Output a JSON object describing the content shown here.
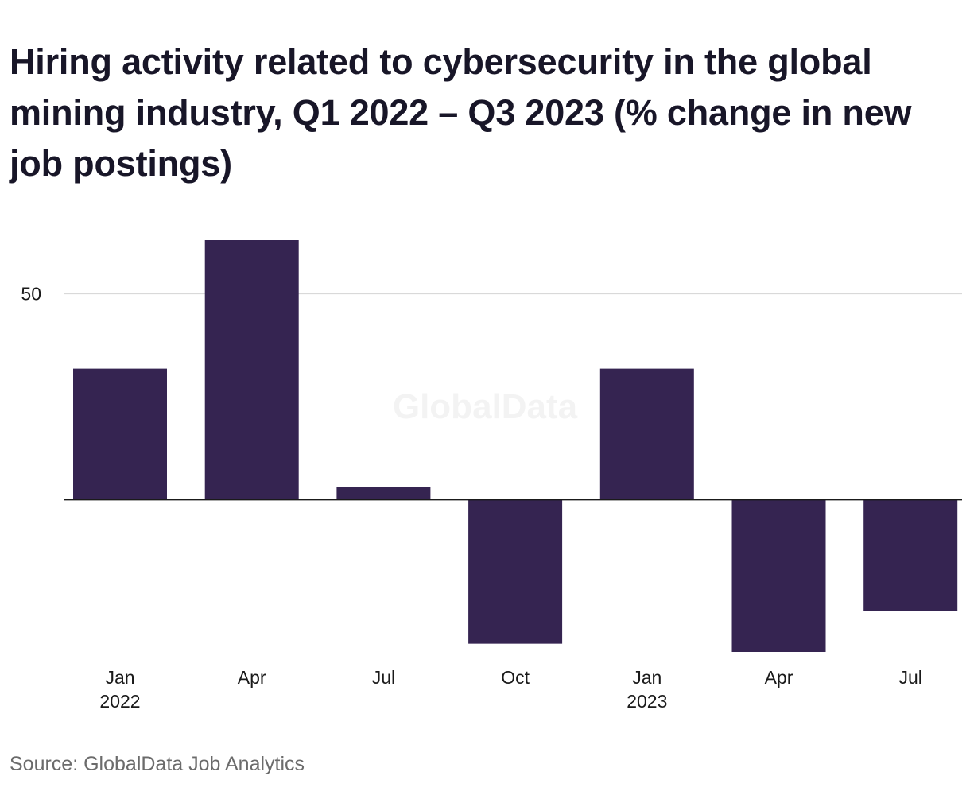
{
  "header": {
    "title": "Hiring activity related to cybersecurity in the global mining industry, Q1 2022 – Q3 2023 (% change in new job postings)"
  },
  "footer": {
    "source": "Source: GlobalData Job Analytics"
  },
  "watermark": "GlobalData",
  "chart_data": {
    "type": "bar",
    "categories": [
      "Jan 2022",
      "Apr 2022",
      "Jul 2022",
      "Oct 2022",
      "Jan 2023",
      "Apr 2023",
      "Jul 2023"
    ],
    "tick_labels": [
      [
        "Jan",
        "2022"
      ],
      [
        "Apr",
        ""
      ],
      [
        "Jul",
        ""
      ],
      [
        "Oct",
        ""
      ],
      [
        "Jan",
        "2023"
      ],
      [
        "Apr",
        ""
      ],
      [
        "Jul",
        ""
      ]
    ],
    "values": [
      31.8,
      63,
      3,
      -35,
      31.8,
      -37,
      -27
    ],
    "ylim": [
      -37,
      63
    ],
    "yticks": [
      50
    ],
    "grid": true,
    "bar_color": "#352451",
    "zero_line_color": "#1a1a1a",
    "grid_color": "#d9d9d9"
  }
}
